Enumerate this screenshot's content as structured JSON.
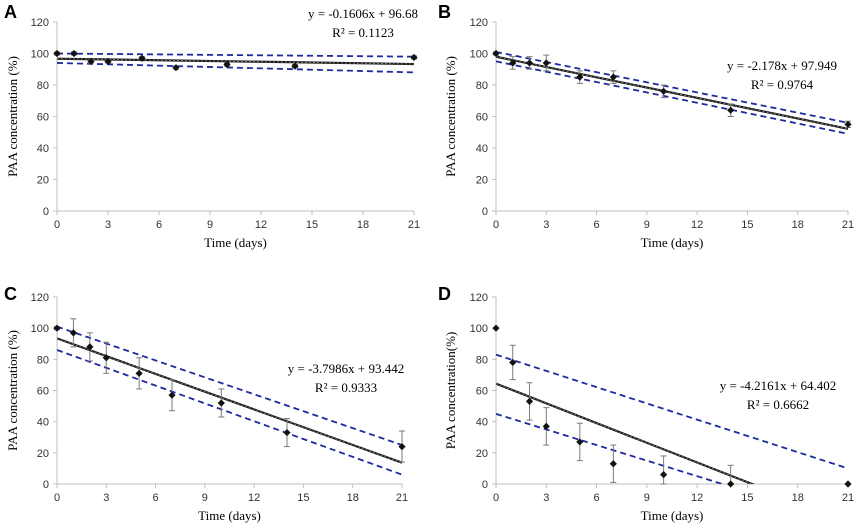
{
  "figure": {
    "x_axis_title": "Time (days)",
    "x_ticks": [
      0,
      3,
      6,
      9,
      12,
      15,
      18,
      21
    ],
    "y_ticks": [
      0,
      20,
      40,
      60,
      80,
      100,
      120
    ],
    "colors": {
      "fit": "#1a1a1a",
      "ci": "#1f2a9e",
      "marker": "#111111",
      "error": "#7a7a7a"
    }
  },
  "chart_data": [
    {
      "panel": "A",
      "type": "scatter",
      "ylabel": "PAA concentration (%)",
      "xlabel": "Time (days)",
      "xlim": [
        0,
        21
      ],
      "ylim": [
        0,
        120
      ],
      "x": [
        0,
        1,
        2,
        3,
        5,
        7,
        10,
        14,
        21
      ],
      "y": [
        100,
        100,
        95,
        95,
        97,
        91,
        93,
        92,
        97.5
      ],
      "error": [
        1,
        1,
        1,
        1,
        1,
        1,
        1,
        1,
        1
      ],
      "fit": {
        "slope": -0.1606,
        "intercept": 96.68
      },
      "ci": [
        [
          100,
          98
        ],
        [
          94,
          88
        ]
      ],
      "equation": "y = -0.1606x + 96.68",
      "r2": "R² = 0.1123"
    },
    {
      "panel": "B",
      "type": "scatter",
      "ylabel": "PAA concentration (%)",
      "xlabel": "Time (days)",
      "xlim": [
        0,
        21
      ],
      "ylim": [
        0,
        120
      ],
      "x": [
        0,
        1,
        2,
        3,
        5,
        7,
        10,
        14,
        21
      ],
      "y": [
        100,
        94,
        94,
        94,
        85,
        85,
        76,
        64,
        55
      ],
      "error": [
        1,
        4,
        4,
        5,
        4,
        4,
        4,
        4,
        2
      ],
      "fit": {
        "slope": -2.178,
        "intercept": 97.949
      },
      "ci": [
        [
          101,
          56
        ],
        [
          95,
          49
        ]
      ],
      "equation": "y = -2.178x + 97.949",
      "r2": "R² = 0.9764"
    },
    {
      "panel": "C",
      "type": "scatter",
      "ylabel": "PAA concentration (%)",
      "xlabel": "Time (days)",
      "xlim": [
        0,
        21
      ],
      "ylim": [
        0,
        120
      ],
      "x": [
        0,
        1,
        2,
        3,
        5,
        7,
        10,
        14,
        21
      ],
      "y": [
        100,
        97,
        88,
        81,
        71,
        57,
        52,
        33,
        24
      ],
      "error": [
        1,
        9,
        9,
        10,
        10,
        10,
        9,
        9,
        10
      ],
      "fit": {
        "slope": -3.7986,
        "intercept": 93.442
      },
      "ci": [
        [
          101,
          25
        ],
        [
          86,
          6
        ]
      ],
      "equation": "y = -3.7986x + 93.442",
      "r2": "R² = 0.9333"
    },
    {
      "panel": "D",
      "type": "scatter",
      "ylabel": "PAA concentration(%)",
      "xlabel": "Time (days)",
      "xlim": [
        0,
        21
      ],
      "ylim": [
        0,
        120
      ],
      "x": [
        0,
        1,
        2,
        3,
        5,
        7,
        10,
        14,
        21
      ],
      "y": [
        100,
        78,
        53,
        37,
        27,
        13,
        6,
        0,
        0
      ],
      "error": [
        0,
        11,
        12,
        12,
        12,
        12,
        12,
        12,
        0
      ],
      "fit": {
        "slope": -4.2161,
        "intercept": 64.402
      },
      "ci": [
        [
          83,
          10
        ],
        [
          45,
          -25
        ]
      ],
      "equation": "y = -4.2161x + 64.402",
      "r2": "R² = 0.6662"
    }
  ]
}
